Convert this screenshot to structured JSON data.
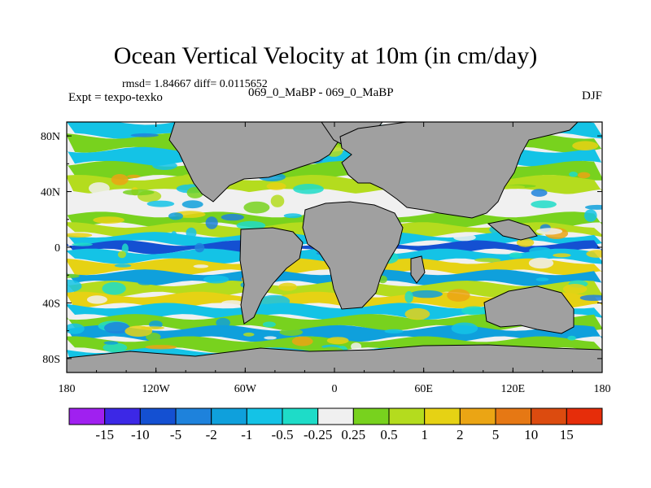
{
  "chart_data": {
    "type": "heatmap",
    "title": "Ocean Vertical Velocity at 10m (in cm/day)",
    "stats_line": "rmsd= 1.84667 diff= 0.0115652",
    "left_label": "Expt = texpo-texko",
    "center_label": "069_0_MaBP - 069_0_MaBP",
    "right_label": "DJF",
    "x_ticks": [
      {
        "label": "180",
        "lon": -180
      },
      {
        "label": "120W",
        "lon": -120
      },
      {
        "label": "60W",
        "lon": -60
      },
      {
        "label": "0",
        "lon": 0
      },
      {
        "label": "60E",
        "lon": 60
      },
      {
        "label": "120E",
        "lon": 120
      },
      {
        "label": "180",
        "lon": 180
      }
    ],
    "y_ticks": [
      {
        "label": "80N",
        "lat": 80
      },
      {
        "label": "40N",
        "lat": 40
      },
      {
        "label": "0",
        "lat": 0
      },
      {
        "label": "40S",
        "lat": -40
      },
      {
        "label": "80S",
        "lat": -80
      }
    ],
    "lon_range": [
      -180,
      180
    ],
    "lat_range": [
      -90,
      90
    ],
    "colorbar": {
      "levels": [
        "-15",
        "-10",
        "-5",
        "-2",
        "-1",
        "-0.5",
        "-0.25",
        "0.25",
        "0.5",
        "1",
        "2",
        "5",
        "10",
        "15"
      ],
      "colors": [
        "#a020f0",
        "#3c28e6",
        "#1450d2",
        "#1e82dc",
        "#0fa0dc",
        "#14c3e6",
        "#1edcc8",
        "#f0f0f0",
        "#78d21e",
        "#b4dc1e",
        "#e6d214",
        "#eba514",
        "#e67814",
        "#dc4b0f",
        "#e62d0a"
      ]
    },
    "land_color": "#a0a0a0",
    "band_pattern": [
      {
        "lat": 85,
        "level": 5
      },
      {
        "lat": 75,
        "level": 8
      },
      {
        "lat": 65,
        "level": 5
      },
      {
        "lat": 55,
        "level": 8
      },
      {
        "lat": 45,
        "level": 9
      },
      {
        "lat": 35,
        "level": 7
      },
      {
        "lat": 27,
        "level": 7
      },
      {
        "lat": 20,
        "level": 8
      },
      {
        "lat": 12,
        "level": 9
      },
      {
        "lat": 6,
        "level": 5
      },
      {
        "lat": 0,
        "level": 2
      },
      {
        "lat": -6,
        "level": 5
      },
      {
        "lat": -14,
        "level": 10
      },
      {
        "lat": -22,
        "level": 4
      },
      {
        "lat": -30,
        "level": 9
      },
      {
        "lat": -38,
        "level": 10
      },
      {
        "lat": -46,
        "level": 5
      },
      {
        "lat": -54,
        "level": 8
      },
      {
        "lat": -62,
        "level": 4
      },
      {
        "lat": -70,
        "level": 8
      },
      {
        "lat": -78,
        "level": 5
      }
    ]
  }
}
